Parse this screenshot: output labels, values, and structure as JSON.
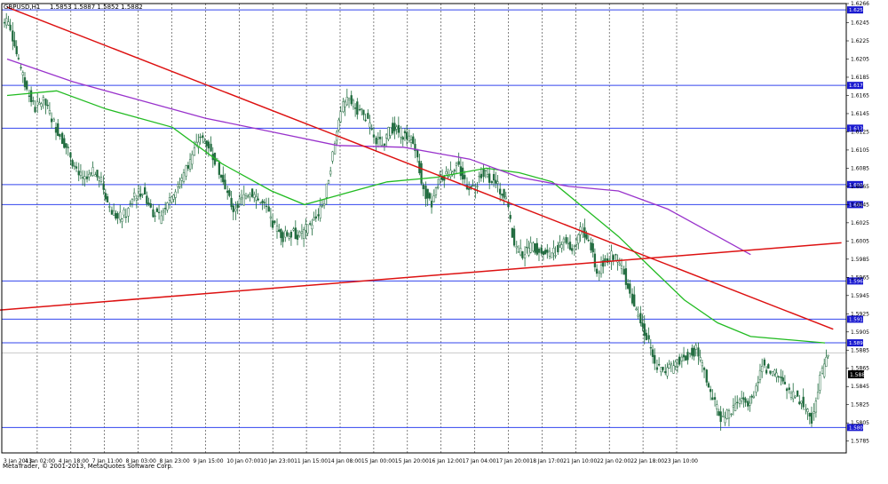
{
  "header": {
    "symbol": "GBPUSD,H1",
    "ohlc": "1.5853 1.5887 1.5852 1.5882"
  },
  "footer": {
    "copyright": "MetaTrader, © 2001-2013, MetaQuotes Software Corp."
  },
  "colors": {
    "background": "#ffffff",
    "grid": "#333333",
    "candle_bull": "#2a6e45",
    "candle_bear": "#1c6b3c",
    "horizontal_level": "#3344ee",
    "trendline": "#dd1111",
    "ma_fast": "#22bb22",
    "ma_slow": "#9933cc",
    "price_badge_bg": "#1a1ad0",
    "price_badge_text": "#ffffff",
    "current_price_line": "#c0c0c0",
    "axis_text": "#000000"
  },
  "chart_data": {
    "type": "candlestick",
    "timeframe": "H1",
    "ylim": [
      1.5772,
      1.6266
    ],
    "y_ticks": [
      "1.6266",
      "1.6245",
      "1.6225",
      "1.6205",
      "1.6185",
      "1.6165",
      "1.6145",
      "1.6125",
      "1.6105",
      "1.6085",
      "1.6065",
      "1.6045",
      "1.6025",
      "1.6005",
      "1.5985",
      "1.5965",
      "1.5945",
      "1.5925",
      "1.5905",
      "1.5885",
      "1.5865",
      "1.5845",
      "1.5825",
      "1.5805",
      "1.5785"
    ],
    "x_ticks": [
      "3 Jan 2013",
      "4 Jan 02:00",
      "4 Jan 18:00",
      "7 Jan 11:00",
      "8 Jan 03:00",
      "8 Jan 23:00",
      "9 Jan 15:00",
      "10 Jan 07:00",
      "10 Jan 23:00",
      "11 Jan 15:00",
      "14 Jan 08:00",
      "15 Jan 00:00",
      "15 Jan 20:00",
      "16 Jan 12:00",
      "17 Jan 04:00",
      "17 Jan 20:00",
      "18 Jan 17:00",
      "21 Jan 10:00",
      "22 Jan 02:00",
      "22 Jan 18:00",
      "23 Jan 10:00"
    ],
    "horizontal_levels": [
      1.6259,
      1.6176,
      1.6129,
      1.6067,
      1.6045,
      1.5961,
      1.5919,
      1.5893,
      1.58
    ],
    "level_labels": [
      "1.6259",
      "1.6176",
      "1.6129",
      "1.6067",
      "1.6045",
      "1.5961",
      "1.5919",
      "1.5893",
      "1.5800"
    ],
    "current_price": 1.5882,
    "current_price_label": "1.5882",
    "close_path": [
      [
        0,
        1.624
      ],
      [
        1,
        1.62
      ],
      [
        2,
        1.617
      ],
      [
        3,
        1.615
      ],
      [
        4,
        1.616
      ],
      [
        5,
        1.614
      ],
      [
        6,
        1.612
      ],
      [
        7,
        1.6105
      ],
      [
        8,
        1.608
      ],
      [
        9,
        1.607
      ],
      [
        10,
        1.608
      ],
      [
        11,
        1.607
      ],
      [
        12,
        1.604
      ],
      [
        13,
        1.603
      ],
      [
        14,
        1.6035
      ],
      [
        15,
        1.6055
      ],
      [
        16,
        1.606
      ],
      [
        17,
        1.604
      ],
      [
        18,
        1.603
      ],
      [
        19,
        1.605
      ],
      [
        20,
        1.606
      ],
      [
        21,
        1.608
      ],
      [
        22,
        1.61
      ],
      [
        23,
        1.612
      ],
      [
        24,
        1.611
      ],
      [
        25,
        1.609
      ],
      [
        26,
        1.606
      ],
      [
        27,
        1.604
      ],
      [
        28,
        1.605
      ],
      [
        29,
        1.606
      ],
      [
        30,
        1.605
      ],
      [
        31,
        1.604
      ],
      [
        32,
        1.602
      ],
      [
        33,
        1.601
      ],
      [
        34,
        1.6015
      ],
      [
        35,
        1.601
      ],
      [
        36,
        1.602
      ],
      [
        37,
        1.603
      ],
      [
        38,
        1.605
      ],
      [
        39,
        1.61
      ],
      [
        40,
        1.615
      ],
      [
        41,
        1.616
      ],
      [
        42,
        1.615
      ],
      [
        43,
        1.614
      ],
      [
        44,
        1.612
      ],
      [
        45,
        1.611
      ],
      [
        46,
        1.613
      ],
      [
        47,
        1.6125
      ],
      [
        48,
        1.612
      ],
      [
        49,
        1.611
      ],
      [
        50,
        1.606
      ],
      [
        51,
        1.6045
      ],
      [
        52,
        1.6075
      ],
      [
        53,
        1.608
      ],
      [
        54,
        1.609
      ],
      [
        55,
        1.607
      ],
      [
        56,
        1.606
      ],
      [
        57,
        1.608
      ],
      [
        58,
        1.6075
      ],
      [
        59,
        1.6065
      ],
      [
        60,
        1.605
      ],
      [
        61,
        1.6
      ],
      [
        62,
        1.599
      ],
      [
        63,
        1.6
      ],
      [
        64,
        1.5995
      ],
      [
        65,
        1.599
      ],
      [
        66,
        1.5995
      ],
      [
        67,
        1.601
      ],
      [
        68,
        1.5995
      ],
      [
        69,
        1.602
      ],
      [
        70,
        1.6005
      ],
      [
        71,
        1.597
      ],
      [
        72,
        1.5985
      ],
      [
        73,
        1.599
      ],
      [
        74,
        1.5975
      ],
      [
        75,
        1.595
      ],
      [
        76,
        1.592
      ],
      [
        77,
        1.59
      ],
      [
        78,
        1.587
      ],
      [
        79,
        1.586
      ],
      [
        80,
        1.5865
      ],
      [
        81,
        1.5875
      ],
      [
        82,
        1.588
      ],
      [
        83,
        1.5885
      ],
      [
        84,
        1.586
      ],
      [
        85,
        1.583
      ],
      [
        86,
        1.581
      ],
      [
        87,
        1.5815
      ],
      [
        88,
        1.583
      ],
      [
        89,
        1.5825
      ],
      [
        90,
        1.584
      ],
      [
        91,
        1.587
      ],
      [
        92,
        1.586
      ],
      [
        93,
        1.5855
      ],
      [
        94,
        1.584
      ],
      [
        95,
        1.5835
      ],
      [
        96,
        1.5825
      ],
      [
        97,
        1.581
      ],
      [
        98,
        1.5855
      ],
      [
        99,
        1.5882
      ]
    ],
    "ma_fast": [
      [
        0,
        1.6165
      ],
      [
        6,
        1.617
      ],
      [
        12,
        1.615
      ],
      [
        20,
        1.613
      ],
      [
        26,
        1.609
      ],
      [
        32,
        1.606
      ],
      [
        36,
        1.6045
      ],
      [
        40,
        1.6055
      ],
      [
        46,
        1.607
      ],
      [
        52,
        1.6075
      ],
      [
        58,
        1.6085
      ],
      [
        62,
        1.608
      ],
      [
        66,
        1.607
      ],
      [
        70,
        1.604
      ],
      [
        74,
        1.601
      ],
      [
        78,
        1.5975
      ],
      [
        82,
        1.594
      ],
      [
        86,
        1.5915
      ],
      [
        90,
        1.59
      ],
      [
        99,
        1.5893
      ]
    ],
    "ma_slow": [
      [
        0,
        1.6205
      ],
      [
        8,
        1.618
      ],
      [
        16,
        1.616
      ],
      [
        24,
        1.614
      ],
      [
        32,
        1.6125
      ],
      [
        40,
        1.611
      ],
      [
        48,
        1.6108
      ],
      [
        56,
        1.6095
      ],
      [
        62,
        1.6075
      ],
      [
        68,
        1.6065
      ],
      [
        74,
        1.606
      ],
      [
        80,
        1.604
      ],
      [
        86,
        1.601
      ],
      [
        90,
        1.599
      ]
    ],
    "trendlines": [
      {
        "from": [
          1.6262,
          0
        ],
        "to": [
          1.5908,
          100
        ],
        "label": ""
      },
      {
        "from": [
          1.5929,
          -1
        ],
        "to": [
          1.6003,
          101
        ],
        "label": ""
      }
    ]
  }
}
